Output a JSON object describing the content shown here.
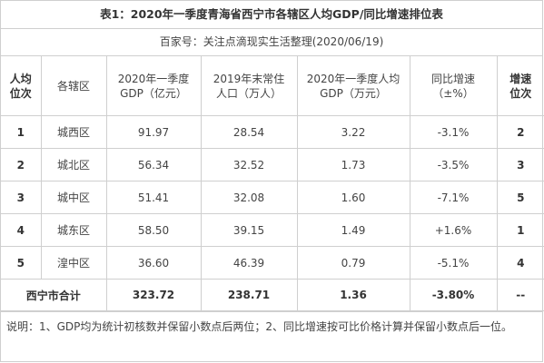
{
  "title": "表1：2020年一季度青海省西宁市各辖区人均GDP/同比增速排位表",
  "source": "百家号：关注点滴现实生活整理(2020/06/19)",
  "headers": {
    "rank": "人均\n位次",
    "district": "各辖区",
    "gdp": "2020年一季度\nGDP（亿元）",
    "population": "2019年末常住\n人口（万人）",
    "per_capita": "2020年一季度人均\nGDP（万元）",
    "growth": "同比增速\n（±%）",
    "growth_rank": "增速\n位次"
  },
  "rows": [
    {
      "rank": "1",
      "district": "城西区",
      "gdp": "91.97",
      "population": "28.54",
      "per_capita": "3.22",
      "growth": "-3.1%",
      "growth_rank": "2"
    },
    {
      "rank": "2",
      "district": "城北区",
      "gdp": "56.34",
      "population": "32.52",
      "per_capita": "1.73",
      "growth": "-3.5%",
      "growth_rank": "3"
    },
    {
      "rank": "3",
      "district": "城中区",
      "gdp": "51.41",
      "population": "32.08",
      "per_capita": "1.60",
      "growth": "-7.1%",
      "growth_rank": "5"
    },
    {
      "rank": "4",
      "district": "城东区",
      "gdp": "58.50",
      "population": "39.15",
      "per_capita": "1.49",
      "growth": "+1.6%",
      "growth_rank": "1"
    },
    {
      "rank": "5",
      "district": "湟中区",
      "gdp": "36.60",
      "population": "46.39",
      "per_capita": "0.79",
      "growth": "-5.1%",
      "growth_rank": "4"
    }
  ],
  "total": {
    "label": "西宁市合计",
    "gdp": "323.72",
    "population": "238.71",
    "per_capita": "1.36",
    "growth": "-3.80%",
    "growth_rank": "--"
  },
  "note": "说明：1、GDP均为统计初核数并保留小数点后两位；2、同比增速按可比价格计算并保留小数点后一位。"
}
